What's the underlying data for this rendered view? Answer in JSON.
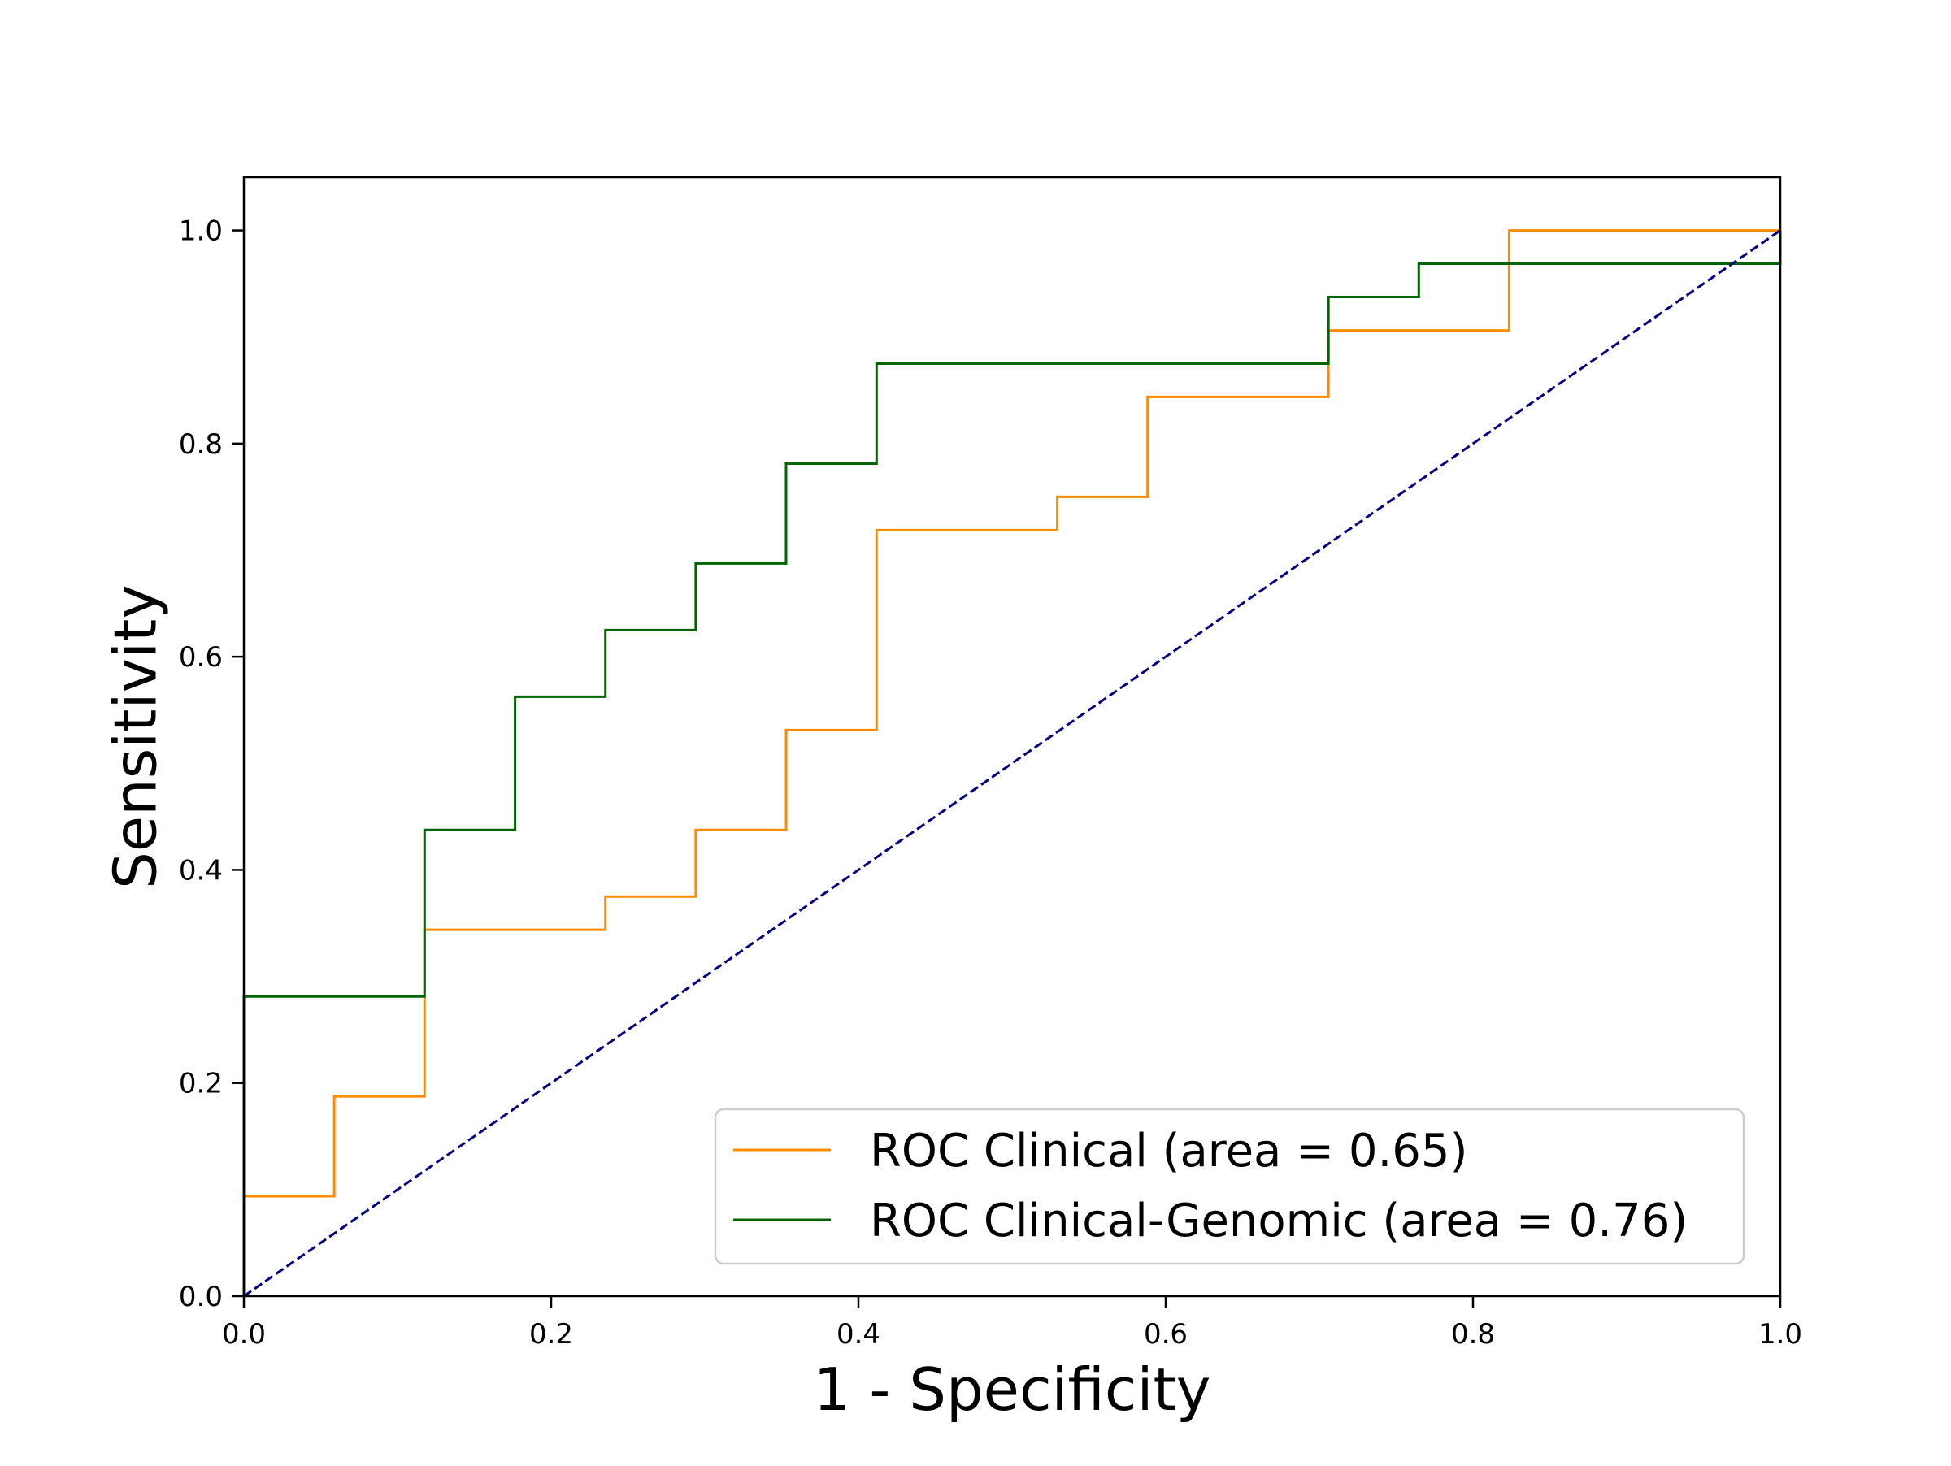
{
  "chart_data": {
    "type": "line",
    "title": "",
    "xlabel": "1 - Specificity",
    "ylabel": "Sensitivity",
    "xlim": [
      0.0,
      1.0
    ],
    "ylim": [
      0.0,
      1.05
    ],
    "xticks": [
      0.0,
      0.2,
      0.4,
      0.6,
      0.8,
      1.0
    ],
    "xtick_labels": [
      "0.0",
      "0.2",
      "0.4",
      "0.6",
      "0.8",
      "1.0"
    ],
    "yticks": [
      0.0,
      0.2,
      0.4,
      0.6,
      0.8,
      1.0
    ],
    "ytick_labels": [
      "0.0",
      "0.2",
      "0.4",
      "0.6",
      "0.8",
      "1.0"
    ],
    "grid": false,
    "legend_position": "lower-right",
    "series": [
      {
        "name": "ROC Clinical (area = 0.65)",
        "color": "#ff8c00",
        "style": "solid",
        "step": true,
        "x": [
          0.0,
          0.0,
          0.0588,
          0.0588,
          0.1176,
          0.1176,
          0.2353,
          0.2353,
          0.2941,
          0.2941,
          0.3529,
          0.3529,
          0.4118,
          0.4118,
          0.5294,
          0.5294,
          0.5882,
          0.5882,
          0.7059,
          0.7059,
          0.8235,
          0.8235,
          1.0
        ],
        "y": [
          0.0,
          0.0938,
          0.0938,
          0.1875,
          0.1875,
          0.3438,
          0.3438,
          0.375,
          0.375,
          0.4375,
          0.4375,
          0.5312,
          0.5312,
          0.7188,
          0.7188,
          0.75,
          0.75,
          0.8438,
          0.8438,
          0.9062,
          0.9062,
          1.0,
          1.0
        ]
      },
      {
        "name": "ROC Clinical-Genomic (area = 0.76)",
        "color": "#006400",
        "style": "solid",
        "step": true,
        "x": [
          0.0,
          0.0,
          0.1176,
          0.1176,
          0.1765,
          0.1765,
          0.2353,
          0.2353,
          0.2941,
          0.2941,
          0.3529,
          0.3529,
          0.4118,
          0.4118,
          0.7059,
          0.7059,
          0.7647,
          0.7647,
          1.0,
          1.0
        ],
        "y": [
          0.0,
          0.2812,
          0.2812,
          0.4375,
          0.4375,
          0.5625,
          0.5625,
          0.625,
          0.625,
          0.6875,
          0.6875,
          0.7812,
          0.7812,
          0.875,
          0.875,
          0.9375,
          0.9375,
          0.9688,
          0.9688,
          1.0
        ]
      },
      {
        "color": "#000080",
        "style": "dashed",
        "step": false,
        "x": [
          0.0,
          1.0
        ],
        "y": [
          0.0,
          1.0
        ]
      }
    ]
  }
}
